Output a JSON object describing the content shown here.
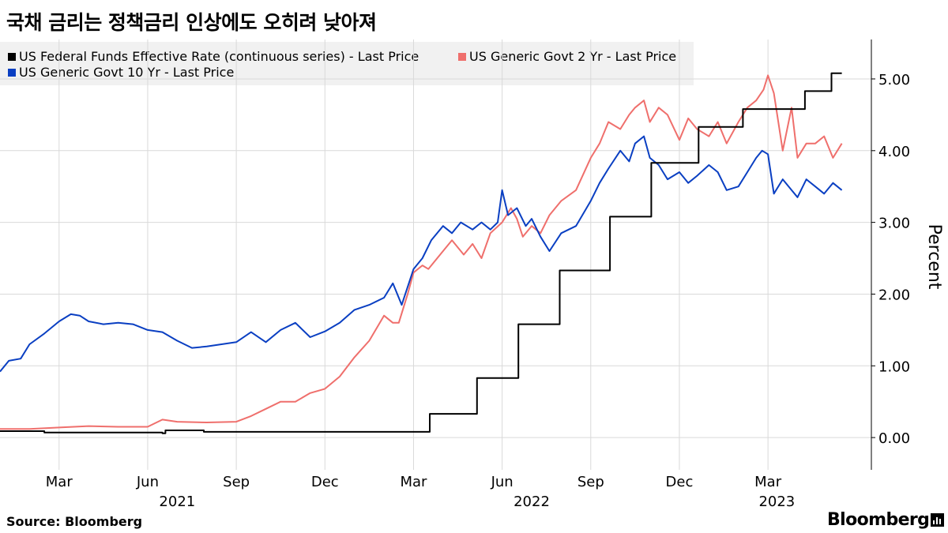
{
  "header": {
    "title": "국채 금리는 정책금리 인상에도 오히려 낮아져"
  },
  "footer": {
    "source": "Source:  Bloomberg",
    "brand": "Bloomberg"
  },
  "colors": {
    "ffr": "#000000",
    "y2": "#ef6f6c",
    "y10": "#0a3fc2",
    "grid": "#d9d9d9"
  },
  "chart_data": {
    "type": "line",
    "title": "국채 금리는 정책금리 인상에도 오히려 낮아져",
    "ylabel": "Percent",
    "ylim": [
      -0.45,
      5.55
    ],
    "y_ticks": [
      0,
      1,
      2,
      3,
      4,
      5
    ],
    "y_tick_labels": [
      "0.00",
      "1.00",
      "2.00",
      "3.00",
      "4.00",
      "5.00"
    ],
    "x_unit": "months since 2021-01-01",
    "xlim": [
      0,
      29.5
    ],
    "x_ticks": [
      {
        "x": 2,
        "label": "Mar"
      },
      {
        "x": 5,
        "label": "Jun"
      },
      {
        "x": 8,
        "label": "Sep"
      },
      {
        "x": 11,
        "label": "Dec"
      },
      {
        "x": 14,
        "label": "Mar"
      },
      {
        "x": 17,
        "label": "Jun"
      },
      {
        "x": 20,
        "label": "Sep"
      },
      {
        "x": 23,
        "label": "Dec"
      },
      {
        "x": 26,
        "label": "Mar"
      }
    ],
    "year_labels": [
      {
        "x": 6,
        "label": "2021"
      },
      {
        "x": 18,
        "label": "2022"
      },
      {
        "x": 26.3,
        "label": "2023"
      }
    ],
    "grid": true,
    "legend": {
      "placement": "top-left"
    },
    "series": [
      {
        "name": "US Federal Funds Effective Rate (continuous series) - Last Price",
        "color_key": "ffr",
        "step": true,
        "x": [
          0,
          1.5,
          5.5,
          5.6,
          6.9,
          7,
          8.5,
          14.5,
          14.55,
          16.1,
          16.15,
          17.5,
          17.55,
          18.9,
          18.95,
          20.6,
          20.65,
          22,
          22.05,
          23.6,
          23.65,
          25.1,
          25.15,
          27.2,
          27.25,
          28.1,
          28.15,
          28.5
        ],
        "values": [
          0.09,
          0.07,
          0.06,
          0.1,
          0.08,
          0.08,
          0.08,
          0.08,
          0.33,
          0.33,
          0.83,
          0.83,
          1.58,
          1.58,
          2.33,
          2.33,
          3.08,
          3.08,
          3.83,
          3.83,
          4.33,
          4.33,
          4.58,
          4.58,
          4.83,
          4.83,
          5.08,
          5.08
        ]
      },
      {
        "name": "US Generic Govt 2 Yr - Last Price",
        "color_key": "y2",
        "x": [
          0,
          1,
          2,
          3,
          4,
          5,
          5.5,
          6,
          7,
          8,
          8.5,
          9,
          9.5,
          10,
          10.5,
          11,
          11.5,
          12,
          12.5,
          13,
          13.3,
          13.5,
          13.8,
          14,
          14.3,
          14.5,
          15,
          15.3,
          15.7,
          16,
          16.3,
          16.6,
          17,
          17.3,
          17.5,
          17.7,
          18,
          18.3,
          18.6,
          19,
          19.5,
          20,
          20.3,
          20.6,
          21,
          21.3,
          21.5,
          21.8,
          22,
          22.3,
          22.6,
          23,
          23.3,
          23.6,
          24,
          24.3,
          24.6,
          25,
          25.3,
          25.6,
          25.85,
          26,
          26.2,
          26.5,
          26.8,
          27,
          27.3,
          27.6,
          27.9,
          28.2,
          28.5
        ],
        "values": [
          0.12,
          0.12,
          0.14,
          0.16,
          0.15,
          0.15,
          0.25,
          0.22,
          0.21,
          0.22,
          0.3,
          0.4,
          0.5,
          0.5,
          0.62,
          0.68,
          0.85,
          1.12,
          1.35,
          1.7,
          1.6,
          1.6,
          2.0,
          2.3,
          2.4,
          2.35,
          2.6,
          2.75,
          2.55,
          2.7,
          2.5,
          2.85,
          3.0,
          3.2,
          3.05,
          2.8,
          2.95,
          2.85,
          3.1,
          3.3,
          3.45,
          3.9,
          4.1,
          4.4,
          4.3,
          4.5,
          4.6,
          4.7,
          4.4,
          4.6,
          4.5,
          4.15,
          4.45,
          4.3,
          4.2,
          4.4,
          4.1,
          4.4,
          4.6,
          4.7,
          4.85,
          5.05,
          4.8,
          4.0,
          4.6,
          3.9,
          4.1,
          4.1,
          4.2,
          3.9,
          4.1
        ]
      },
      {
        "name": "US Generic Govt 10 Yr - Last Price",
        "color_key": "y10",
        "x": [
          0,
          0.3,
          0.7,
          1,
          1.5,
          2,
          2.4,
          2.7,
          3,
          3.5,
          4,
          4.5,
          5,
          5.5,
          6,
          6.5,
          7,
          7.5,
          8,
          8.5,
          9,
          9.5,
          10,
          10.5,
          11,
          11.5,
          12,
          12.5,
          13,
          13.3,
          13.6,
          14,
          14.3,
          14.6,
          15,
          15.3,
          15.6,
          16,
          16.3,
          16.6,
          16.85,
          17,
          17.2,
          17.5,
          17.8,
          18,
          18.3,
          18.6,
          19,
          19.5,
          20,
          20.3,
          20.6,
          21,
          21.3,
          21.5,
          21.8,
          22,
          22.3,
          22.6,
          23,
          23.3,
          23.6,
          24,
          24.3,
          24.6,
          25,
          25.3,
          25.6,
          25.8,
          26,
          26.2,
          26.5,
          26.8,
          27,
          27.3,
          27.6,
          27.9,
          28.2,
          28.5
        ],
        "values": [
          0.92,
          1.07,
          1.1,
          1.3,
          1.45,
          1.62,
          1.72,
          1.7,
          1.62,
          1.58,
          1.6,
          1.58,
          1.5,
          1.47,
          1.35,
          1.25,
          1.27,
          1.3,
          1.33,
          1.47,
          1.33,
          1.5,
          1.6,
          1.4,
          1.48,
          1.6,
          1.78,
          1.85,
          1.95,
          2.15,
          1.85,
          2.35,
          2.5,
          2.75,
          2.95,
          2.85,
          3.0,
          2.9,
          3.0,
          2.9,
          3.0,
          3.45,
          3.1,
          3.2,
          2.95,
          3.05,
          2.8,
          2.6,
          2.85,
          2.95,
          3.3,
          3.55,
          3.75,
          4.0,
          3.85,
          4.1,
          4.2,
          3.9,
          3.8,
          3.6,
          3.7,
          3.55,
          3.65,
          3.8,
          3.7,
          3.45,
          3.5,
          3.7,
          3.9,
          4.0,
          3.95,
          3.4,
          3.6,
          3.45,
          3.35,
          3.6,
          3.5,
          3.4,
          3.55,
          3.45
        ]
      }
    ]
  }
}
